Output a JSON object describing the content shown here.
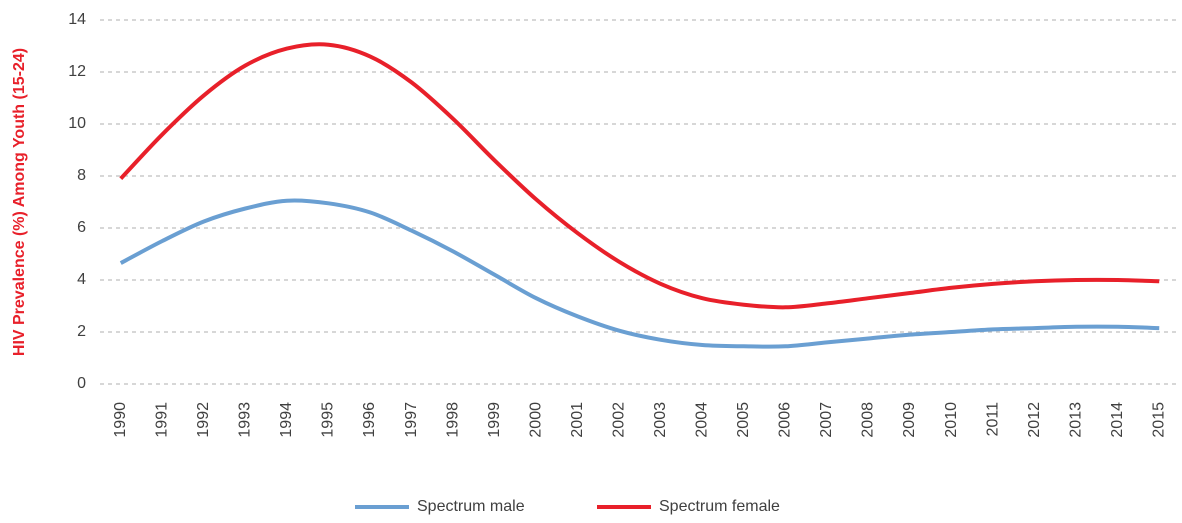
{
  "chart_data": {
    "type": "line",
    "y_label": "HIV Prevalence (%) Among Youth (15-24)",
    "categories": [
      "1990",
      "1991",
      "1992",
      "1993",
      "1994",
      "1995",
      "1996",
      "1997",
      "1998",
      "1999",
      "2000",
      "2001",
      "2002",
      "2003",
      "2004",
      "2005",
      "2006",
      "2007",
      "2008",
      "2009",
      "2010",
      "2011",
      "2012",
      "2013",
      "2014",
      "2015"
    ],
    "series": [
      {
        "name": "Spectrum male",
        "color": "#6a9fd2",
        "values": [
          4.65,
          5.5,
          6.25,
          6.75,
          7.05,
          6.95,
          6.6,
          5.9,
          5.1,
          4.2,
          3.3,
          2.6,
          2.05,
          1.7,
          1.5,
          1.45,
          1.45,
          1.6,
          1.75,
          1.9,
          2.0,
          2.1,
          2.15,
          2.2,
          2.2,
          2.15
        ]
      },
      {
        "name": "Spectrum female",
        "color": "#e8202a",
        "values": [
          7.9,
          9.6,
          11.1,
          12.25,
          12.9,
          13.05,
          12.6,
          11.6,
          10.2,
          8.6,
          7.1,
          5.8,
          4.7,
          3.85,
          3.3,
          3.05,
          2.95,
          3.1,
          3.3,
          3.5,
          3.7,
          3.85,
          3.95,
          4.0,
          4.0,
          3.95
        ]
      }
    ],
    "ylim": [
      0,
      14
    ],
    "yticks": [
      0,
      2,
      4,
      6,
      8,
      10,
      12,
      14
    ],
    "grid": true,
    "legend": "bottom",
    "y_label_color": "#e8202a"
  }
}
